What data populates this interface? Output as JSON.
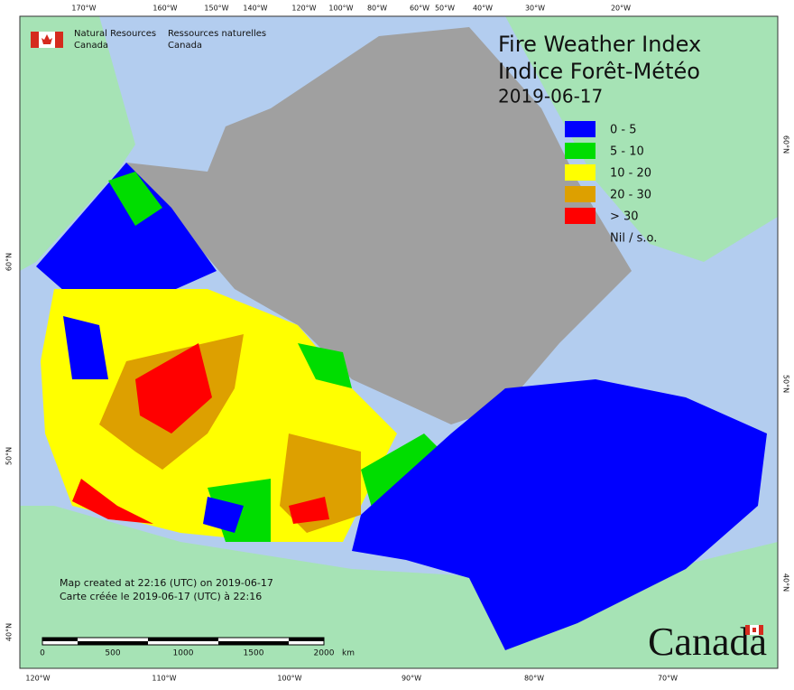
{
  "agency": {
    "en_line1": "Natural Resources",
    "en_line2": "Canada",
    "fr_line1": "Ressources naturelles",
    "fr_line2": "Canada"
  },
  "title": {
    "en": "Fire Weather Index",
    "fr": "Indice Forêt-Météo",
    "date": "2019-06-17"
  },
  "legend": [
    {
      "label": "0 - 5",
      "color": "#0000ff"
    },
    {
      "label": "5 - 10",
      "color": "#00dd00"
    },
    {
      "label": "10 - 20",
      "color": "#ffff00"
    },
    {
      "label": "20 - 30",
      "color": "#dda000"
    },
    {
      "label": "> 30",
      "color": "#ff0000"
    },
    {
      "label": "Nil / s.o.",
      "color": "#a0a0a0"
    }
  ],
  "graticule": {
    "top": [
      "170°W",
      "160°W",
      "150°W",
      "140°W",
      "120°W",
      "100°W",
      "80°W",
      "60°W",
      "50°W",
      "40°W",
      "30°W",
      "20°W"
    ],
    "bottom": [
      "120°W",
      "110°W",
      "100°W",
      "90°W",
      "80°W",
      "70°W"
    ],
    "left": [
      "60°N",
      "50°N",
      "40°N"
    ],
    "right": [
      "60°N",
      "50°N",
      "40°N"
    ]
  },
  "footer": {
    "en": "Map created at 22:16 (UTC) on 2019-06-17",
    "fr": "Carte créée le 2019-06-17 (UTC) à 22:16"
  },
  "scale_bar": {
    "ticks": [
      "0",
      "500",
      "1000",
      "1500",
      "2000"
    ],
    "unit": "km"
  },
  "wordmark": "Canada"
}
